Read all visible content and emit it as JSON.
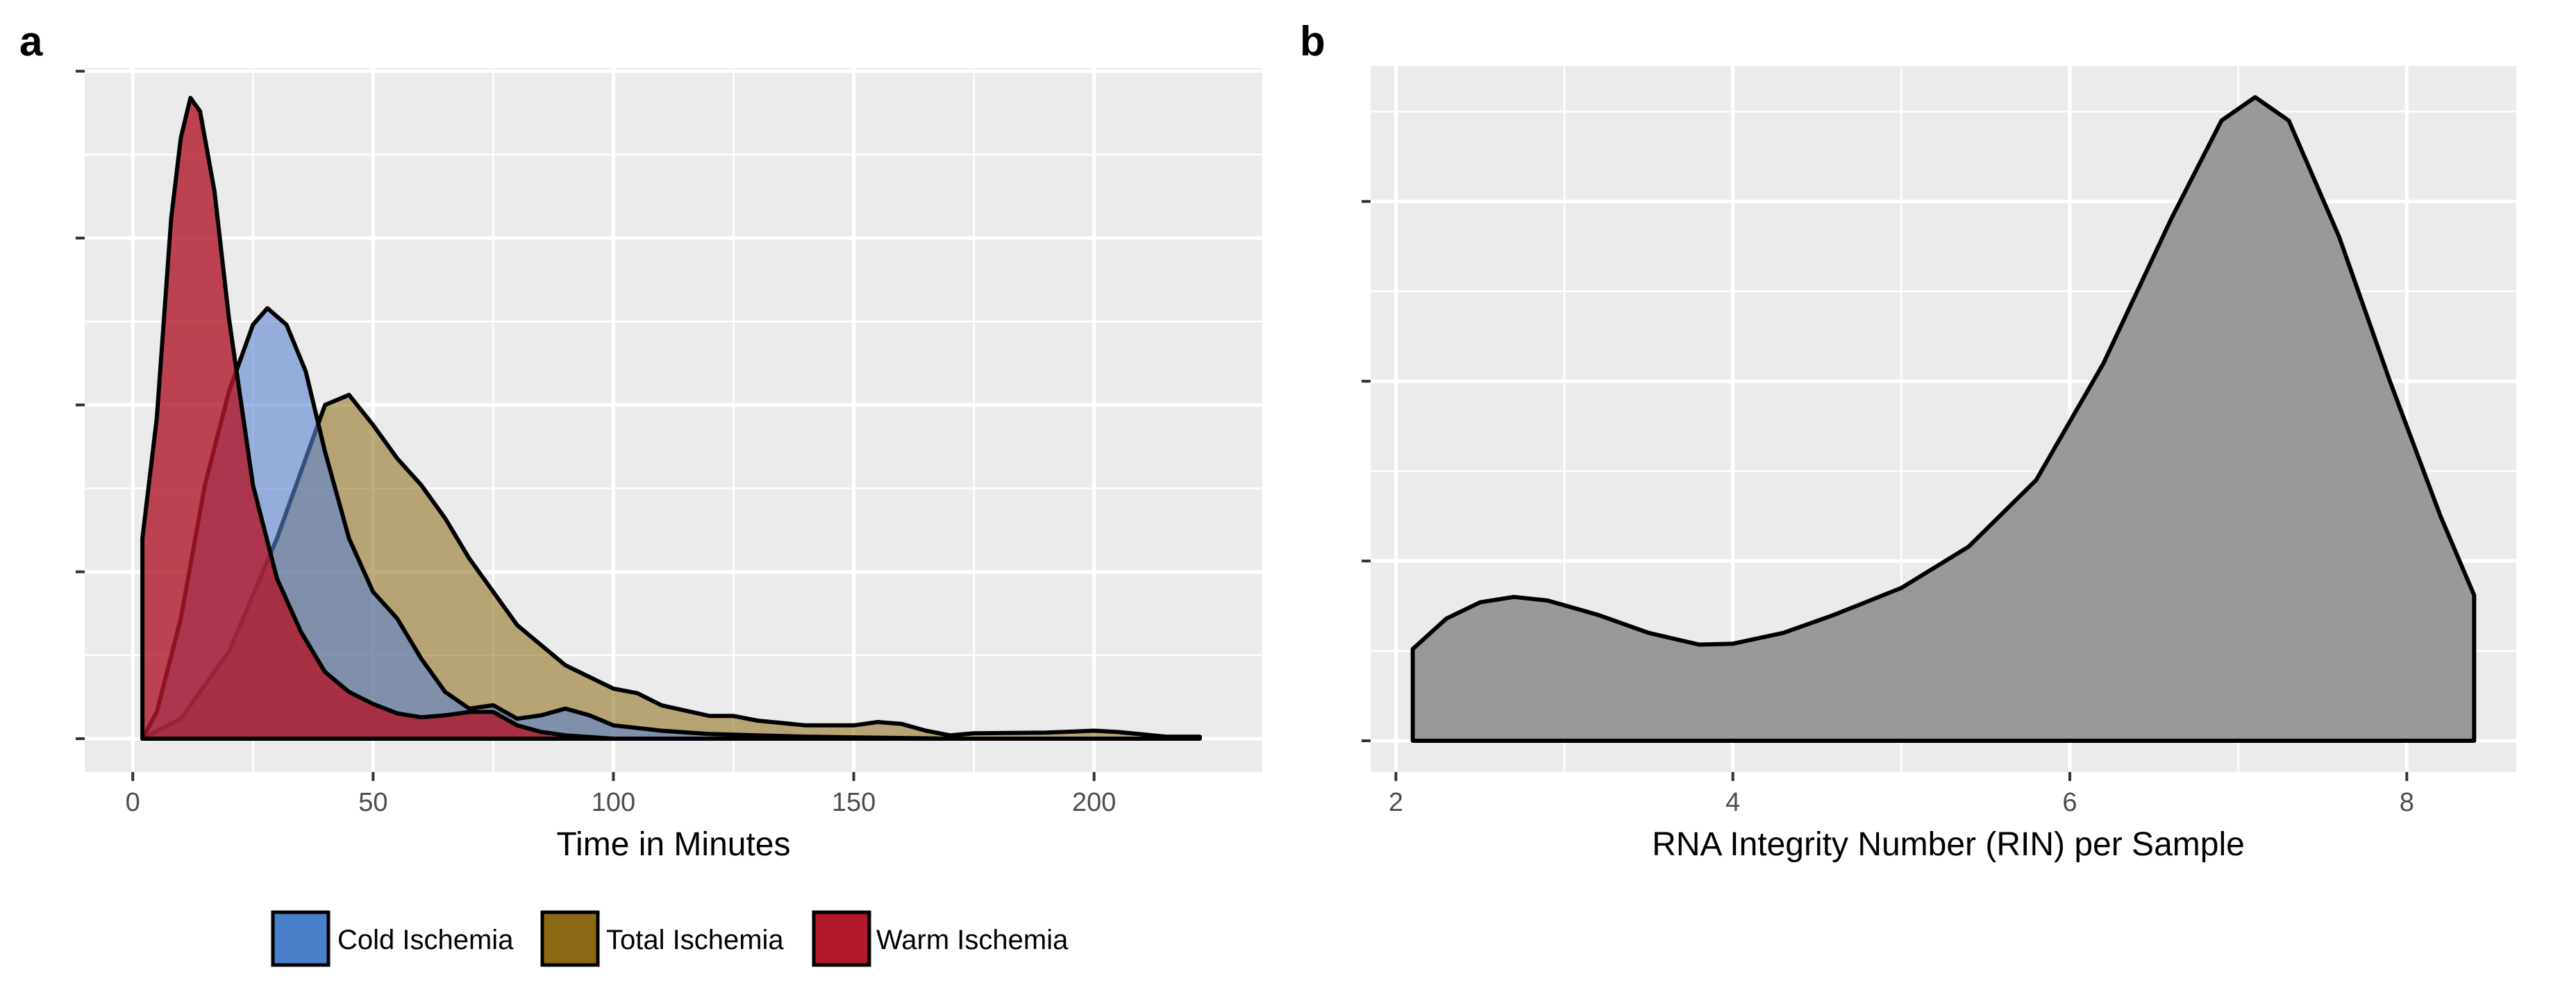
{
  "chart_data": [
    {
      "panel_label": "a",
      "type": "area",
      "subtype": "density",
      "title": "",
      "xlabel": "Time in Minutes",
      "ylabel": "",
      "xlim": [
        -10,
        235
      ],
      "ylim": [
        0,
        1.0
      ],
      "x_ticks": [
        0,
        50,
        100,
        150,
        200
      ],
      "y_ticks": [
        0,
        0.25,
        0.5,
        0.75,
        1.0
      ],
      "y_tick_labels_shown": false,
      "grid": true,
      "legend": {
        "position": "bottom",
        "entries": [
          "Cold Ischemia",
          "Total Ischemia",
          "Warm Ischemia"
        ]
      },
      "series": [
        {
          "name": "Total Ischemia",
          "color": "#8B6914",
          "opacity": 0.55,
          "points": [
            [
              2,
              0
            ],
            [
              10,
              0.03
            ],
            [
              20,
              0.13
            ],
            [
              30,
              0.3
            ],
            [
              35,
              0.4
            ],
            [
              40,
              0.5
            ],
            [
              45,
              0.515
            ],
            [
              50,
              0.47
            ],
            [
              55,
              0.42
            ],
            [
              60,
              0.38
            ],
            [
              65,
              0.33
            ],
            [
              70,
              0.27
            ],
            [
              80,
              0.17
            ],
            [
              90,
              0.11
            ],
            [
              100,
              0.075
            ],
            [
              105,
              0.068
            ],
            [
              110,
              0.05
            ],
            [
              120,
              0.034
            ],
            [
              125,
              0.034
            ],
            [
              130,
              0.027
            ],
            [
              140,
              0.02
            ],
            [
              150,
              0.02
            ],
            [
              155,
              0.025
            ],
            [
              160,
              0.022
            ],
            [
              165,
              0.012
            ],
            [
              170,
              0.005
            ],
            [
              175,
              0.008
            ],
            [
              190,
              0.009
            ],
            [
              200,
              0.012
            ],
            [
              205,
              0.01
            ],
            [
              215,
              0.003
            ],
            [
              222,
              0.003
            ]
          ]
        },
        {
          "name": "Cold Ischemia",
          "color": "#5B84CF",
          "opacity": 0.6,
          "points": [
            [
              2,
              0
            ],
            [
              5,
              0.04
            ],
            [
              10,
              0.18
            ],
            [
              15,
              0.38
            ],
            [
              20,
              0.52
            ],
            [
              25,
              0.62
            ],
            [
              28,
              0.645
            ],
            [
              32,
              0.62
            ],
            [
              36,
              0.55
            ],
            [
              40,
              0.43
            ],
            [
              45,
              0.3
            ],
            [
              50,
              0.22
            ],
            [
              55,
              0.18
            ],
            [
              60,
              0.12
            ],
            [
              65,
              0.07
            ],
            [
              70,
              0.045
            ],
            [
              75,
              0.05
            ],
            [
              80,
              0.03
            ],
            [
              85,
              0.035
            ],
            [
              90,
              0.045
            ],
            [
              95,
              0.035
            ],
            [
              100,
              0.02
            ],
            [
              110,
              0.012
            ],
            [
              120,
              0.007
            ],
            [
              130,
              0.005
            ],
            [
              140,
              0.003
            ],
            [
              150,
              0.002
            ],
            [
              165,
              0.0005
            ],
            [
              170,
              0
            ]
          ]
        },
        {
          "name": "Warm Ischemia",
          "color": "#B2182B",
          "opacity": 0.8,
          "points": [
            [
              2,
              0
            ],
            [
              2,
              0.3
            ],
            [
              5,
              0.48
            ],
            [
              8,
              0.78
            ],
            [
              10,
              0.9
            ],
            [
              12,
              0.96
            ],
            [
              14,
              0.94
            ],
            [
              17,
              0.82
            ],
            [
              20,
              0.63
            ],
            [
              25,
              0.38
            ],
            [
              30,
              0.24
            ],
            [
              35,
              0.16
            ],
            [
              40,
              0.1
            ],
            [
              45,
              0.07
            ],
            [
              50,
              0.052
            ],
            [
              55,
              0.038
            ],
            [
              60,
              0.032
            ],
            [
              65,
              0.035
            ],
            [
              70,
              0.04
            ],
            [
              75,
              0.04
            ],
            [
              80,
              0.02
            ],
            [
              85,
              0.01
            ],
            [
              90,
              0.005
            ],
            [
              100,
              0
            ]
          ]
        }
      ]
    },
    {
      "panel_label": "b",
      "type": "area",
      "subtype": "density",
      "title": "",
      "xlabel": "RNA Integrity Number (RIN) per Sample",
      "ylabel": "",
      "xlim": [
        1.85,
        8.65
      ],
      "ylim": [
        0,
        0.4
      ],
      "x_ticks": [
        2,
        4,
        6,
        8
      ],
      "y_ticks": [
        0,
        0.1,
        0.2,
        0.3
      ],
      "y_tick_labels_shown": false,
      "grid": true,
      "series": [
        {
          "name": "RIN",
          "color": "#999999",
          "opacity": 1.0,
          "points": [
            [
              2.1,
              0
            ],
            [
              2.1,
              0.051
            ],
            [
              2.3,
              0.068
            ],
            [
              2.5,
              0.077
            ],
            [
              2.7,
              0.08
            ],
            [
              2.9,
              0.078
            ],
            [
              3.2,
              0.07
            ],
            [
              3.5,
              0.06
            ],
            [
              3.8,
              0.0535
            ],
            [
              4.0,
              0.054
            ],
            [
              4.3,
              0.06
            ],
            [
              4.6,
              0.07
            ],
            [
              5.0,
              0.085
            ],
            [
              5.4,
              0.108
            ],
            [
              5.8,
              0.145
            ],
            [
              6.2,
              0.21
            ],
            [
              6.6,
              0.29
            ],
            [
              6.9,
              0.345
            ],
            [
              7.1,
              0.358
            ],
            [
              7.3,
              0.345
            ],
            [
              7.6,
              0.28
            ],
            [
              7.9,
              0.2
            ],
            [
              8.2,
              0.125
            ],
            [
              8.4,
              0.081
            ],
            [
              8.4,
              0
            ]
          ]
        }
      ]
    }
  ]
}
